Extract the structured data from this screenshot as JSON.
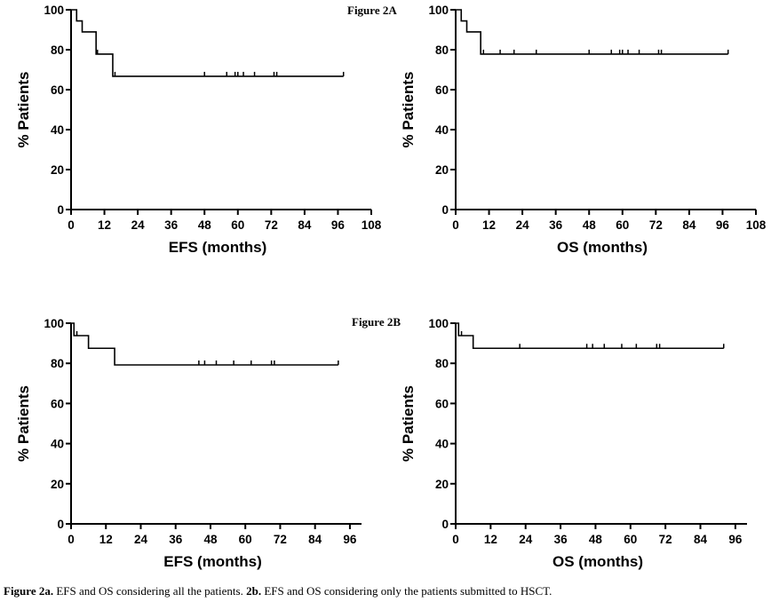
{
  "chart_data": [
    {
      "id": "2a-efs",
      "type": "line",
      "figure_label": "Figure 2A",
      "xlabel": "EFS (months)",
      "ylabel": "% Patients",
      "xlim": [
        0,
        108
      ],
      "ylim": [
        0,
        100
      ],
      "xticks": [
        "0",
        "12",
        "24",
        "36",
        "48",
        "60",
        "72",
        "84",
        "96",
        "108"
      ],
      "yticks": [
        "0",
        "20",
        "40",
        "60",
        "80",
        "100"
      ],
      "series": [
        {
          "steps": [
            [
              0,
              100
            ],
            [
              2,
              94.4
            ],
            [
              4,
              88.9
            ],
            [
              9,
              77.8
            ],
            [
              15,
              66.7
            ],
            [
              98,
              66.7
            ]
          ],
          "censored": [
            [
              9.5,
              77.8
            ],
            [
              15.8,
              66.7
            ],
            [
              48,
              66.7
            ],
            [
              56,
              66.7
            ],
            [
              59,
              66.7
            ],
            [
              60,
              66.7
            ],
            [
              62,
              66.7
            ],
            [
              66,
              66.7
            ],
            [
              73,
              66.7
            ],
            [
              74,
              66.7
            ],
            [
              98,
              66.7
            ]
          ]
        }
      ]
    },
    {
      "id": "2a-os",
      "type": "line",
      "figure_label": "",
      "xlabel": "OS (months)",
      "ylabel": "% Patients",
      "xlim": [
        0,
        108
      ],
      "ylim": [
        0,
        100
      ],
      "xticks": [
        "0",
        "12",
        "24",
        "36",
        "48",
        "60",
        "72",
        "84",
        "96",
        "108"
      ],
      "yticks": [
        "0",
        "20",
        "40",
        "60",
        "80",
        "100"
      ],
      "series": [
        {
          "steps": [
            [
              0,
              100
            ],
            [
              2,
              94.4
            ],
            [
              4,
              88.9
            ],
            [
              9,
              77.8
            ],
            [
              98,
              77.8
            ]
          ],
          "censored": [
            [
              10,
              77.8
            ],
            [
              16,
              77.8
            ],
            [
              21,
              77.8
            ],
            [
              29,
              77.8
            ],
            [
              48,
              77.8
            ],
            [
              56,
              77.8
            ],
            [
              59,
              77.8
            ],
            [
              60,
              77.8
            ],
            [
              62,
              77.8
            ],
            [
              66,
              77.8
            ],
            [
              73,
              77.8
            ],
            [
              74,
              77.8
            ],
            [
              98,
              77.8
            ]
          ]
        }
      ]
    },
    {
      "id": "2b-efs",
      "type": "line",
      "figure_label": "Figure 2B",
      "xlabel": "EFS (months)",
      "ylabel": "% Patients",
      "xlim": [
        0,
        100
      ],
      "ylim": [
        0,
        100
      ],
      "xticks": [
        "0",
        "12",
        "24",
        "36",
        "48",
        "60",
        "72",
        "84",
        "96"
      ],
      "yticks": [
        "0",
        "20",
        "40",
        "60",
        "80",
        "100"
      ],
      "series": [
        {
          "steps": [
            [
              0,
              100
            ],
            [
              1,
              93.8
            ],
            [
              6,
              87.5
            ],
            [
              15,
              79.2
            ],
            [
              92,
              79.2
            ]
          ],
          "censored": [
            [
              2,
              93.8
            ],
            [
              44,
              79.2
            ],
            [
              46,
              79.2
            ],
            [
              50,
              79.2
            ],
            [
              56,
              79.2
            ],
            [
              62,
              79.2
            ],
            [
              69,
              79.2
            ],
            [
              70,
              79.2
            ],
            [
              92,
              79.2
            ]
          ]
        }
      ]
    },
    {
      "id": "2b-os",
      "type": "line",
      "figure_label": "",
      "xlabel": "OS (months)",
      "ylabel": "% Patients",
      "xlim": [
        0,
        100
      ],
      "ylim": [
        0,
        100
      ],
      "xticks": [
        "0",
        "12",
        "24",
        "36",
        "48",
        "60",
        "72",
        "84",
        "96"
      ],
      "yticks": [
        "0",
        "20",
        "40",
        "60",
        "80",
        "100"
      ],
      "series": [
        {
          "steps": [
            [
              0,
              100
            ],
            [
              1,
              93.8
            ],
            [
              6,
              87.5
            ],
            [
              92,
              87.5
            ]
          ],
          "censored": [
            [
              2,
              93.8
            ],
            [
              22,
              87.5
            ],
            [
              45,
              87.5
            ],
            [
              47,
              87.5
            ],
            [
              51,
              87.5
            ],
            [
              57,
              87.5
            ],
            [
              62,
              87.5
            ],
            [
              69,
              87.5
            ],
            [
              70,
              87.5
            ],
            [
              92,
              87.5
            ]
          ]
        }
      ]
    }
  ],
  "caption": {
    "part1_bold": "Figure 2a.",
    "part1_text": " EFS and OS considering all the patients. ",
    "part2_bold": "2b.",
    "part2_text": " EFS and OS considering only the patients submitted to HSCT."
  }
}
